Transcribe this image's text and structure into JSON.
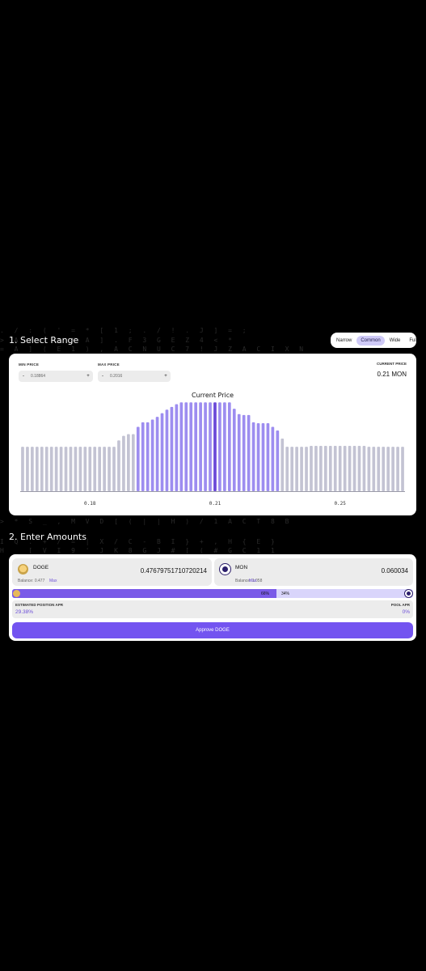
{
  "matrix_rows": [
    "  . /  :  ( ' =  *  [ 1  ;  . / ! .  J  ]  = ;",
    "  > A  2  ;  ]  K  A ]  .  F  3  G  E  Z  4  <  *",
    " = A ] ( E  1  )  ,  A C N  U  C  7  !  J  Z A C I X  N",
    " > *  S _ , M V D [  (  |  |  H  ) / 1 A  C  T  8  B",
    "  I Q  .  +  /  =  |  X /  C  -  B  I  }  +  ,  H  {  E  }",
    " H  _  [ V  I 9  '  J  K  8  G  J  #  [ (  #  G  C   1  1"
  ],
  "section1": {
    "title": "1. Select Range"
  },
  "range_tabs": [
    {
      "label": "Narrow",
      "active": false
    },
    {
      "label": "Common",
      "active": true
    },
    {
      "label": "Wide",
      "active": false
    },
    {
      "label": "Full",
      "active": false
    }
  ],
  "min_price": {
    "label": "MIN PRICE",
    "value": "0.18864",
    "minus": "-",
    "plus": "+"
  },
  "max_price": {
    "label": "MAX PRICE",
    "value": "0.2016",
    "minus": "-",
    "plus": "+"
  },
  "current_price": {
    "label": "CURRENT PRICE",
    "value": "0.21 MON"
  },
  "chart_data": {
    "type": "bar",
    "title": "Current Price",
    "x_ticks": [
      {
        "label": "0.18",
        "index": 14
      },
      {
        "label": "0.21",
        "index": 40
      },
      {
        "label": "0.25",
        "index": 66
      }
    ],
    "values": [
      49,
      49,
      49,
      49,
      49,
      49,
      49,
      49,
      49,
      49,
      49,
      49,
      49,
      49,
      49,
      49,
      49,
      49,
      49,
      49,
      56,
      61,
      63,
      63,
      71,
      76,
      76,
      79,
      82,
      86,
      90,
      93,
      96,
      98,
      98,
      98,
      98,
      98,
      98,
      98,
      98,
      98,
      98,
      98,
      91,
      85,
      84,
      84,
      76,
      75,
      75,
      75,
      71,
      67,
      58,
      49,
      49,
      49,
      49,
      49,
      50,
      50,
      50,
      50,
      50,
      50,
      50,
      50,
      50,
      50,
      50,
      50,
      49,
      49,
      49,
      49,
      49,
      49,
      49,
      49
    ],
    "in_range_start": 24,
    "in_range_end": 53,
    "current_index": 40,
    "colors": {
      "out_of_range": "#c3c3d3",
      "in_range": "#9d8df0",
      "current": "#6a48d8"
    }
  },
  "section2": {
    "title": "2. Enter Amounts"
  },
  "token_a": {
    "symbol": "DOGE",
    "amount": "0.47679751710720214",
    "balance": "Balance: 0.477",
    "max": "Max"
  },
  "token_b": {
    "symbol": "MON",
    "amount": "0.060034",
    "balance": "Balance: 1.058",
    "max": "Max"
  },
  "ratio": {
    "left": "66%",
    "right": "34%",
    "left_fraction": 0.66
  },
  "apr": {
    "est_label": "ESTIMATED POSITION APR",
    "est_value": "29.38%",
    "pool_label": "POOL APR",
    "pool_value": "0%"
  },
  "approve_label": "Approve DOGE"
}
